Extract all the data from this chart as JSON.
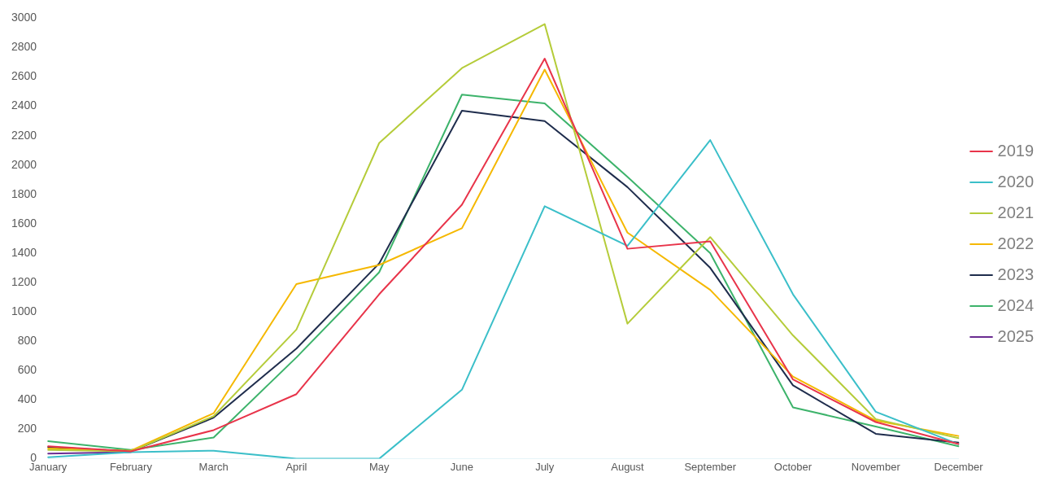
{
  "chart_data": {
    "type": "line",
    "categories": [
      "January",
      "February",
      "March",
      "April",
      "May",
      "June",
      "July",
      "August",
      "September",
      "October",
      "November",
      "December"
    ],
    "ylim": [
      0,
      3000
    ],
    "yticks": [
      0,
      200,
      400,
      600,
      800,
      1000,
      1200,
      1400,
      1600,
      1800,
      2000,
      2200,
      2400,
      2600,
      2800,
      3000
    ],
    "grid": false,
    "legend": "right",
    "marker": "none",
    "line_style": "solid",
    "series": [
      {
        "name": "2019",
        "color": "#e8344a",
        "values": [
          85,
          50,
          195,
          440,
          1120,
          1730,
          2725,
          1430,
          1480,
          540,
          250,
          100
        ]
      },
      {
        "name": "2020",
        "color": "#3bbfc9",
        "values": [
          10,
          45,
          55,
          0,
          0,
          470,
          1720,
          1450,
          2170,
          1120,
          320,
          100
        ]
      },
      {
        "name": "2021",
        "color": "#b5cc3a",
        "values": [
          60,
          50,
          290,
          880,
          2150,
          2660,
          2960,
          920,
          1510,
          840,
          270,
          140
        ]
      },
      {
        "name": "2022",
        "color": "#f5b800",
        "values": [
          70,
          55,
          310,
          1190,
          1320,
          1570,
          2650,
          1540,
          1150,
          560,
          260,
          155
        ]
      },
      {
        "name": "2023",
        "color": "#1f2d4d",
        "values": [
          80,
          50,
          280,
          750,
          1330,
          2370,
          2300,
          1850,
          1300,
          500,
          170,
          110
        ]
      },
      {
        "name": "2024",
        "color": "#3db36b",
        "values": [
          120,
          60,
          145,
          690,
          1270,
          2480,
          2420,
          1920,
          1400,
          350,
          220,
          85
        ]
      },
      {
        "name": "2025",
        "color": "#6a2c91",
        "values": [
          35,
          45,
          null,
          null,
          null,
          null,
          null,
          null,
          null,
          null,
          null,
          null
        ]
      }
    ]
  }
}
